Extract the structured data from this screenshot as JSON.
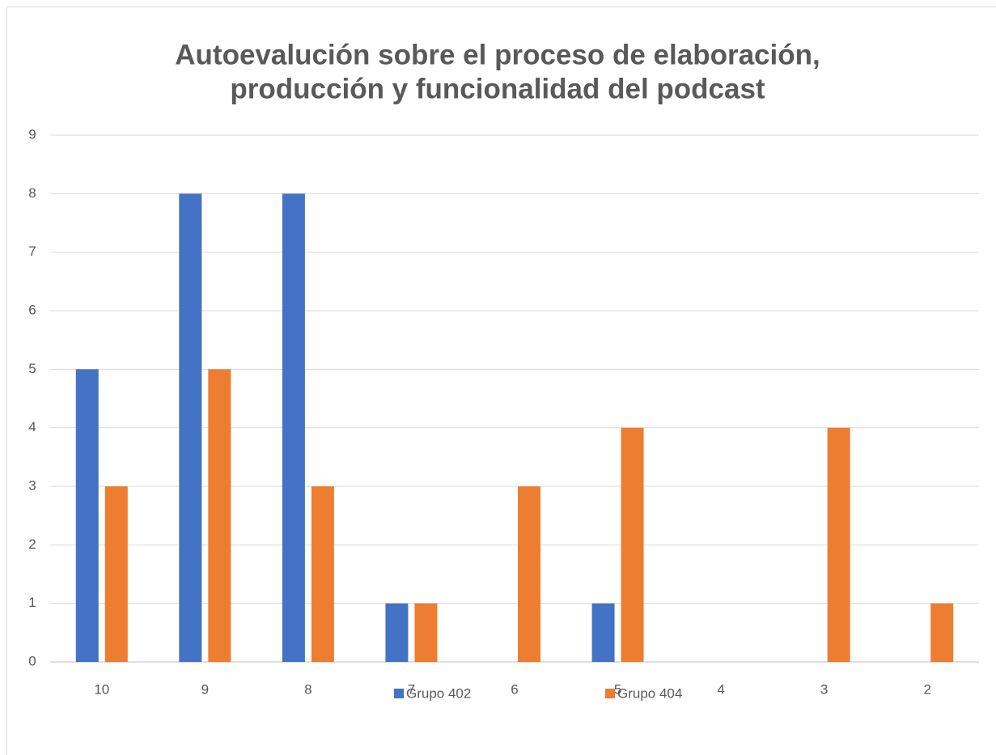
{
  "chart_data": {
    "type": "bar",
    "title": [
      "Autoevalución sobre el proceso de elaboración,",
      "producción y funcionalidad del podcast"
    ],
    "categories": [
      "10",
      "9",
      "8",
      "7",
      "6",
      "5",
      "4",
      "3",
      "2"
    ],
    "series": [
      {
        "name": "Grupo 402",
        "color": "#4472c4",
        "values": [
          5,
          8,
          8,
          1,
          0,
          1,
          0,
          0,
          0
        ]
      },
      {
        "name": "Grupo 404",
        "color": "#ed7d31",
        "values": [
          3,
          5,
          3,
          1,
          3,
          4,
          0,
          4,
          1
        ]
      }
    ],
    "ylim": [
      0,
      9
    ],
    "yticks": [
      0,
      1,
      2,
      3,
      4,
      5,
      6,
      7,
      8,
      9
    ],
    "grid": true,
    "legend": "bottom"
  }
}
